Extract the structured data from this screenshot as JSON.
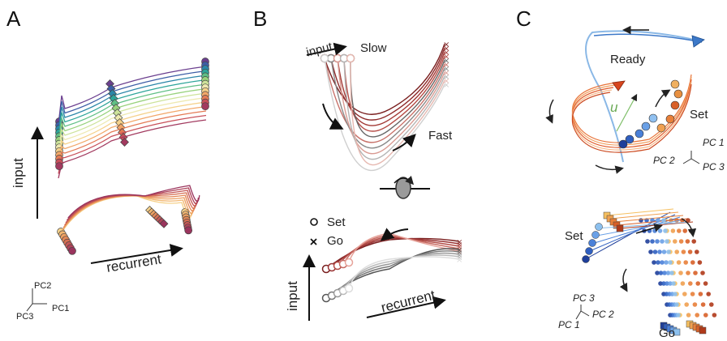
{
  "panels": {
    "a": "A",
    "b": "B",
    "c": "C"
  },
  "panel_a": {
    "axis_input": "input",
    "axis_recurrent": "recurrent",
    "pc_labels": {
      "pc2": "PC2",
      "pc3": "PC3",
      "pc1": "PC1"
    },
    "colors": [
      "#6b3f8f",
      "#3d5ea6",
      "#2a86a8",
      "#2ea59a",
      "#5fbf85",
      "#98d27c",
      "#cde39a",
      "#eee9b0",
      "#f5d18a",
      "#f2a769",
      "#e47a55",
      "#c8505a",
      "#a23a5f",
      "#7a2b5e"
    ]
  },
  "panel_b": {
    "label_input_top": "input",
    "label_slow": "Slow",
    "label_fast": "Fast",
    "legend_set": "Set",
    "legend_go": "Go",
    "axis_input": "input",
    "axis_recurrent": "recurrent"
  },
  "panel_c": {
    "label_ready": "Ready",
    "label_set": "Set",
    "label_u": "u",
    "pc_top": {
      "pc1": "PC 1",
      "pc2": "PC 2",
      "pc3": "PC 3"
    },
    "label_set_bottom": "Set",
    "label_go": "Go",
    "pc_bottom": {
      "pc3": "PC 3",
      "pc2": "PC 2",
      "pc1": "PC 1"
    }
  }
}
